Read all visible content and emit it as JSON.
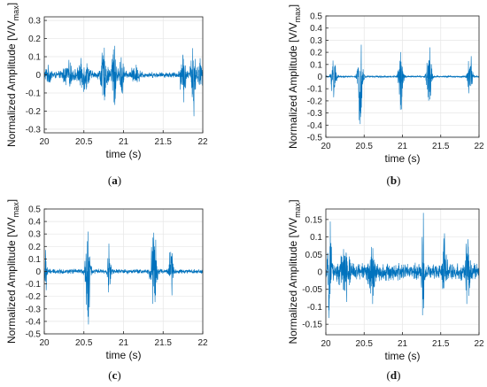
{
  "chart_data": [
    {
      "type": "line",
      "panel_label": "a",
      "xlabel": "time (s)",
      "ylabel_main": "Normalized Amplitude [V/V",
      "ylabel_sub": "max",
      "ylabel_close": "]",
      "xlim": [
        20,
        22
      ],
      "ylim": [
        -0.32,
        0.32
      ],
      "xticks": [
        "20",
        "20.5",
        "21",
        "21.5",
        "22"
      ],
      "yticks": [
        "0.3",
        "0.2",
        "0.1",
        "0",
        "-0.1",
        "-0.2",
        "-0.3"
      ],
      "ytick_values": [
        0.3,
        0.2,
        0.1,
        0,
        -0.1,
        -0.2,
        -0.3
      ],
      "grid": true,
      "color": "#0072BD",
      "signal": {
        "noise": 0.018,
        "bursts": [
          {
            "t": 20.05,
            "amp": 0.04,
            "width": 0.1
          },
          {
            "t": 20.3,
            "amp": 0.07,
            "width": 0.12
          },
          {
            "t": 20.5,
            "amp": 0.1,
            "width": 0.12
          },
          {
            "t": 20.75,
            "amp": 0.16,
            "width": 0.08
          },
          {
            "t": 20.88,
            "amp": 0.3,
            "width": 0.05
          },
          {
            "t": 20.98,
            "amp": 0.14,
            "width": 0.05
          },
          {
            "t": 21.15,
            "amp": 0.05,
            "width": 0.1
          },
          {
            "t": 21.75,
            "amp": 0.17,
            "width": 0.06
          },
          {
            "t": 21.88,
            "amp": 0.3,
            "width": 0.05
          },
          {
            "t": 21.97,
            "amp": 0.1,
            "width": 0.05
          }
        ]
      }
    },
    {
      "type": "line",
      "panel_label": "b",
      "xlabel": "time (s)",
      "ylabel_main": "Normalized Amplitude [V/V",
      "ylabel_sub": "max",
      "ylabel_close": "]",
      "xlim": [
        20,
        22
      ],
      "ylim": [
        -0.5,
        0.5
      ],
      "xticks": [
        "20",
        "20.5",
        "21",
        "21.5",
        "22"
      ],
      "yticks": [
        "0.5",
        "0.4",
        "0.3",
        "0.2",
        "0.1",
        "0",
        "-0.1",
        "-0.2",
        "-0.3",
        "-0.4",
        "-0.5"
      ],
      "ytick_values": [
        0.5,
        0.4,
        0.3,
        0.2,
        0.1,
        0,
        -0.1,
        -0.2,
        -0.3,
        -0.4,
        -0.5
      ],
      "grid": true,
      "color": "#0072BD",
      "signal": {
        "noise": 0.008,
        "bursts": [
          {
            "t": 20.1,
            "amp": 0.3,
            "width": 0.05
          },
          {
            "t": 20.45,
            "amp": 0.48,
            "width": 0.05
          },
          {
            "t": 20.98,
            "amp": 0.33,
            "width": 0.05
          },
          {
            "t": 21.35,
            "amp": 0.42,
            "width": 0.05
          },
          {
            "t": 21.88,
            "amp": 0.28,
            "width": 0.05
          }
        ]
      }
    },
    {
      "type": "line",
      "panel_label": "c",
      "xlabel": "time (s)",
      "ylabel_main": "Normalized Amplitude [V/V",
      "ylabel_sub": "max",
      "ylabel_close": "]",
      "xlim": [
        20,
        22
      ],
      "ylim": [
        -0.5,
        0.5
      ],
      "xticks": [
        "20",
        "20.5",
        "21",
        "21.5",
        "22"
      ],
      "yticks": [
        "0.5",
        "0.4",
        "0.3",
        "0.2",
        "0.1",
        "0",
        "-0.1",
        "-0.2",
        "-0.3",
        "-0.4",
        "-0.5"
      ],
      "ytick_values": [
        0.5,
        0.4,
        0.3,
        0.2,
        0.1,
        0,
        -0.1,
        -0.2,
        -0.3,
        -0.4,
        -0.5
      ],
      "grid": true,
      "color": "#0072BD",
      "signal": {
        "noise": 0.022,
        "bursts": [
          {
            "t": 20.02,
            "amp": 0.2,
            "width": 0.03
          },
          {
            "t": 20.55,
            "amp": 0.5,
            "width": 0.05
          },
          {
            "t": 20.82,
            "amp": 0.3,
            "width": 0.03
          },
          {
            "t": 21.38,
            "amp": 0.5,
            "width": 0.06
          },
          {
            "t": 21.6,
            "amp": 0.35,
            "width": 0.04
          }
        ]
      }
    },
    {
      "type": "line",
      "panel_label": "d",
      "xlabel": "time (s)",
      "ylabel_main": "Normalized Amplitude [V/V",
      "ylabel_sub": "max",
      "ylabel_close": "]",
      "xlim": [
        20,
        22
      ],
      "ylim": [
        -0.18,
        0.18
      ],
      "xticks": [
        "20",
        "20.5",
        "21",
        "21.5",
        "22"
      ],
      "yticks": [
        "0.15",
        "0.1",
        "0.05",
        "0",
        "-0.05",
        "-0.1",
        "-0.15"
      ],
      "ytick_values": [
        0.15,
        0.1,
        0.05,
        0,
        -0.05,
        -0.1,
        -0.15
      ],
      "grid": true,
      "color": "#0072BD",
      "signal": {
        "noise": 0.028,
        "bursts": [
          {
            "t": 20.05,
            "amp": 0.14,
            "width": 0.04
          },
          {
            "t": 20.25,
            "amp": 0.08,
            "width": 0.1
          },
          {
            "t": 20.6,
            "amp": 0.09,
            "width": 0.06
          },
          {
            "t": 21.27,
            "amp": 0.17,
            "width": 0.03
          },
          {
            "t": 21.55,
            "amp": 0.1,
            "width": 0.05
          },
          {
            "t": 21.85,
            "amp": 0.13,
            "width": 0.04
          }
        ]
      }
    }
  ]
}
